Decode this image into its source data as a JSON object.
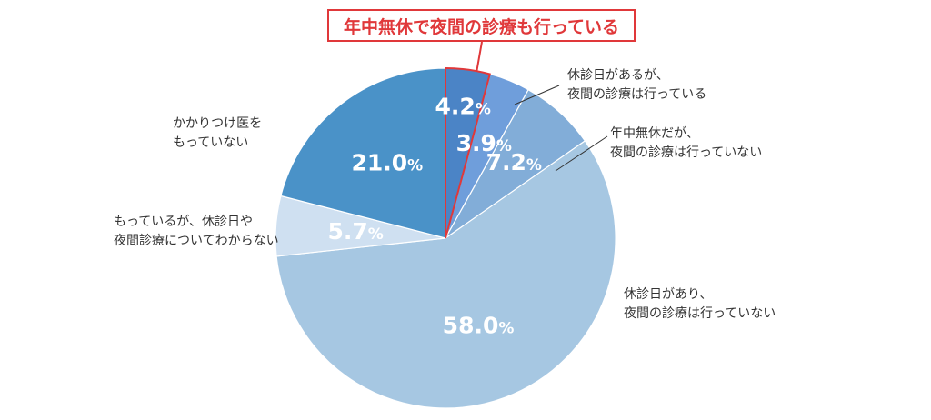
{
  "callout": {
    "text": "年中無休で夜間の診療も行っている",
    "color": "#e0383a"
  },
  "chart_data": {
    "type": "pie",
    "start": "top",
    "direction": "clockwise",
    "slices": [
      {
        "value": 4.2,
        "label": "4.2%",
        "color": "#4b84c6",
        "highlight": true,
        "category": ""
      },
      {
        "value": 3.9,
        "label": "3.9%",
        "color": "#6f9edb",
        "category": [
          "休診日があるが、",
          "夜間の診療は行っている"
        ]
      },
      {
        "value": 7.2,
        "label": "7.2%",
        "color": "#82add8",
        "category": [
          "年中無休だが、",
          "夜間の診療は行っていない"
        ]
      },
      {
        "value": 58.0,
        "label": "58.0%",
        "color": "#a6c7e2",
        "category": [
          "休診日があり、",
          "夜間の診療は行っていない"
        ]
      },
      {
        "value": 5.7,
        "label": "5.7%",
        "color": "#cfe0f1",
        "category": [
          "もっているが、休診日や",
          "夜間診療についてわからない"
        ]
      },
      {
        "value": 21.0,
        "label": "21.0%",
        "color": "#4a92c8",
        "category": [
          "かかりつけ医を",
          "もっていない"
        ]
      }
    ]
  }
}
